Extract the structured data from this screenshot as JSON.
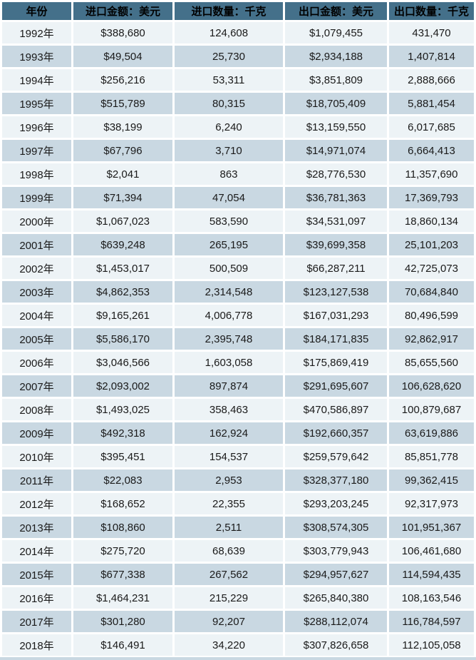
{
  "chart_data": {
    "type": "table",
    "description": "Yearly import/export amounts and quantities table, 1992-2018",
    "columns": [
      "年份",
      "进口金额：美元",
      "进口数量：千克",
      "出口金额：美元",
      "出口数量：千克"
    ],
    "rows": [
      [
        "1992年",
        "$388,680",
        "124,608",
        "$1,079,455",
        "431,470"
      ],
      [
        "1993年",
        "$49,504",
        "25,730",
        "$2,934,188",
        "1,407,814"
      ],
      [
        "1994年",
        "$256,216",
        "53,311",
        "$3,851,809",
        "2,888,666"
      ],
      [
        "1995年",
        "$515,789",
        "80,315",
        "$18,705,409",
        "5,881,454"
      ],
      [
        "1996年",
        "$38,199",
        "6,240",
        "$13,159,550",
        "6,017,685"
      ],
      [
        "1997年",
        "$67,796",
        "3,710",
        "$14,971,074",
        "6,664,413"
      ],
      [
        "1998年",
        "$2,041",
        "863",
        "$28,776,530",
        "11,357,690"
      ],
      [
        "1999年",
        "$71,394",
        "47,054",
        "$36,781,363",
        "17,369,793"
      ],
      [
        "2000年",
        "$1,067,023",
        "583,590",
        "$34,531,097",
        "18,860,134"
      ],
      [
        "2001年",
        "$639,248",
        "265,195",
        "$39,699,358",
        "25,101,203"
      ],
      [
        "2002年",
        "$1,453,017",
        "500,509",
        "$66,287,211",
        "42,725,073"
      ],
      [
        "2003年",
        "$4,862,353",
        "2,314,548",
        "$123,127,538",
        "70,684,840"
      ],
      [
        "2004年",
        "$9,165,261",
        "4,006,778",
        "$167,031,293",
        "80,496,599"
      ],
      [
        "2005年",
        "$5,586,170",
        "2,395,748",
        "$184,171,835",
        "92,862,917"
      ],
      [
        "2006年",
        "$3,046,566",
        "1,603,058",
        "$175,869,419",
        "85,655,560"
      ],
      [
        "2007年",
        "$2,093,002",
        "897,874",
        "$291,695,607",
        "106,628,620"
      ],
      [
        "2008年",
        "$1,493,025",
        "358,463",
        "$470,586,897",
        "100,879,687"
      ],
      [
        "2009年",
        "$492,318",
        "162,924",
        "$192,660,357",
        "63,619,886"
      ],
      [
        "2010年",
        "$395,451",
        "154,537",
        "$259,579,642",
        "85,851,778"
      ],
      [
        "2011年",
        "$22,083",
        "2,953",
        "$328,377,180",
        "99,362,415"
      ],
      [
        "2012年",
        "$168,652",
        "22,355",
        "$293,203,245",
        "92,317,973"
      ],
      [
        "2013年",
        "$108,860",
        "2,511",
        "$308,574,305",
        "101,951,367"
      ],
      [
        "2014年",
        "$275,720",
        "68,639",
        "$303,779,943",
        "106,461,680"
      ],
      [
        "2015年",
        "$677,338",
        "267,562",
        "$294,957,627",
        "114,594,435"
      ],
      [
        "2016年",
        "$1,464,231",
        "215,229",
        "$265,840,380",
        "108,163,546"
      ],
      [
        "2017年",
        "$301,280",
        "92,207",
        "$288,112,074",
        "116,784,597"
      ],
      [
        "2018年",
        "$146,491",
        "34,220",
        "$307,826,658",
        "112,105,058"
      ]
    ]
  },
  "style": {
    "header_bg": "#44708A",
    "header_text": "#000000",
    "row_light": "#EDF3F6",
    "row_dark": "#C9D8E2",
    "grid": "#FFFFFF",
    "text": "#1A1A1A"
  }
}
